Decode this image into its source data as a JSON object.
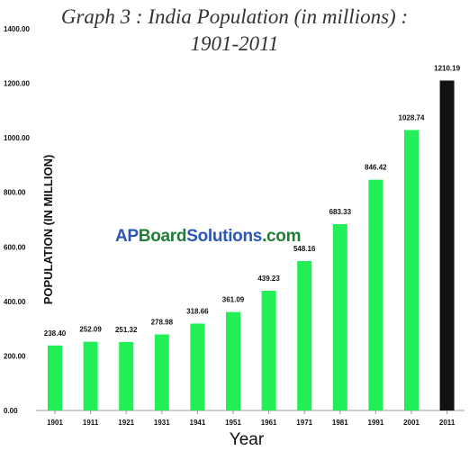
{
  "chart_data": {
    "type": "bar",
    "title_line1": "Graph 3 : India Population (in millions) :",
    "title_line2": "1901-2011",
    "xlabel": "Year",
    "ylabel": "POPULATION (IN MILLION)",
    "ylim": [
      0,
      1400
    ],
    "yticks": [
      "0.00",
      "200.00",
      "400.00",
      "600.00",
      "800.00",
      "1000.00",
      "1200.00",
      "1400.00"
    ],
    "categories": [
      "1901",
      "1911",
      "1921",
      "1931",
      "1941",
      "1951",
      "1961",
      "1971",
      "1981",
      "1991",
      "2001",
      "2011"
    ],
    "values": [
      238.4,
      252.09,
      251.32,
      278.98,
      318.66,
      361.09,
      439.23,
      548.16,
      683.33,
      846.42,
      1028.74,
      1210.19
    ],
    "labels": [
      "238.40",
      "252.09",
      "251.32",
      "278.98",
      "318.66",
      "361.09",
      "439.23",
      "548.16",
      "683.33",
      "846.42",
      "1028.74",
      "1210.19"
    ],
    "colors": [
      "#22ee55",
      "#22ee55",
      "#22ee55",
      "#22ee55",
      "#22ee55",
      "#22ee55",
      "#22ee55",
      "#22ee55",
      "#22ee55",
      "#22ee55",
      "#22ee55",
      "#111111"
    ],
    "grid": false,
    "legend": "none"
  },
  "watermark": {
    "part1": "AP",
    "part2": "Board",
    "part3": "Solutions",
    "part4": ".com"
  }
}
